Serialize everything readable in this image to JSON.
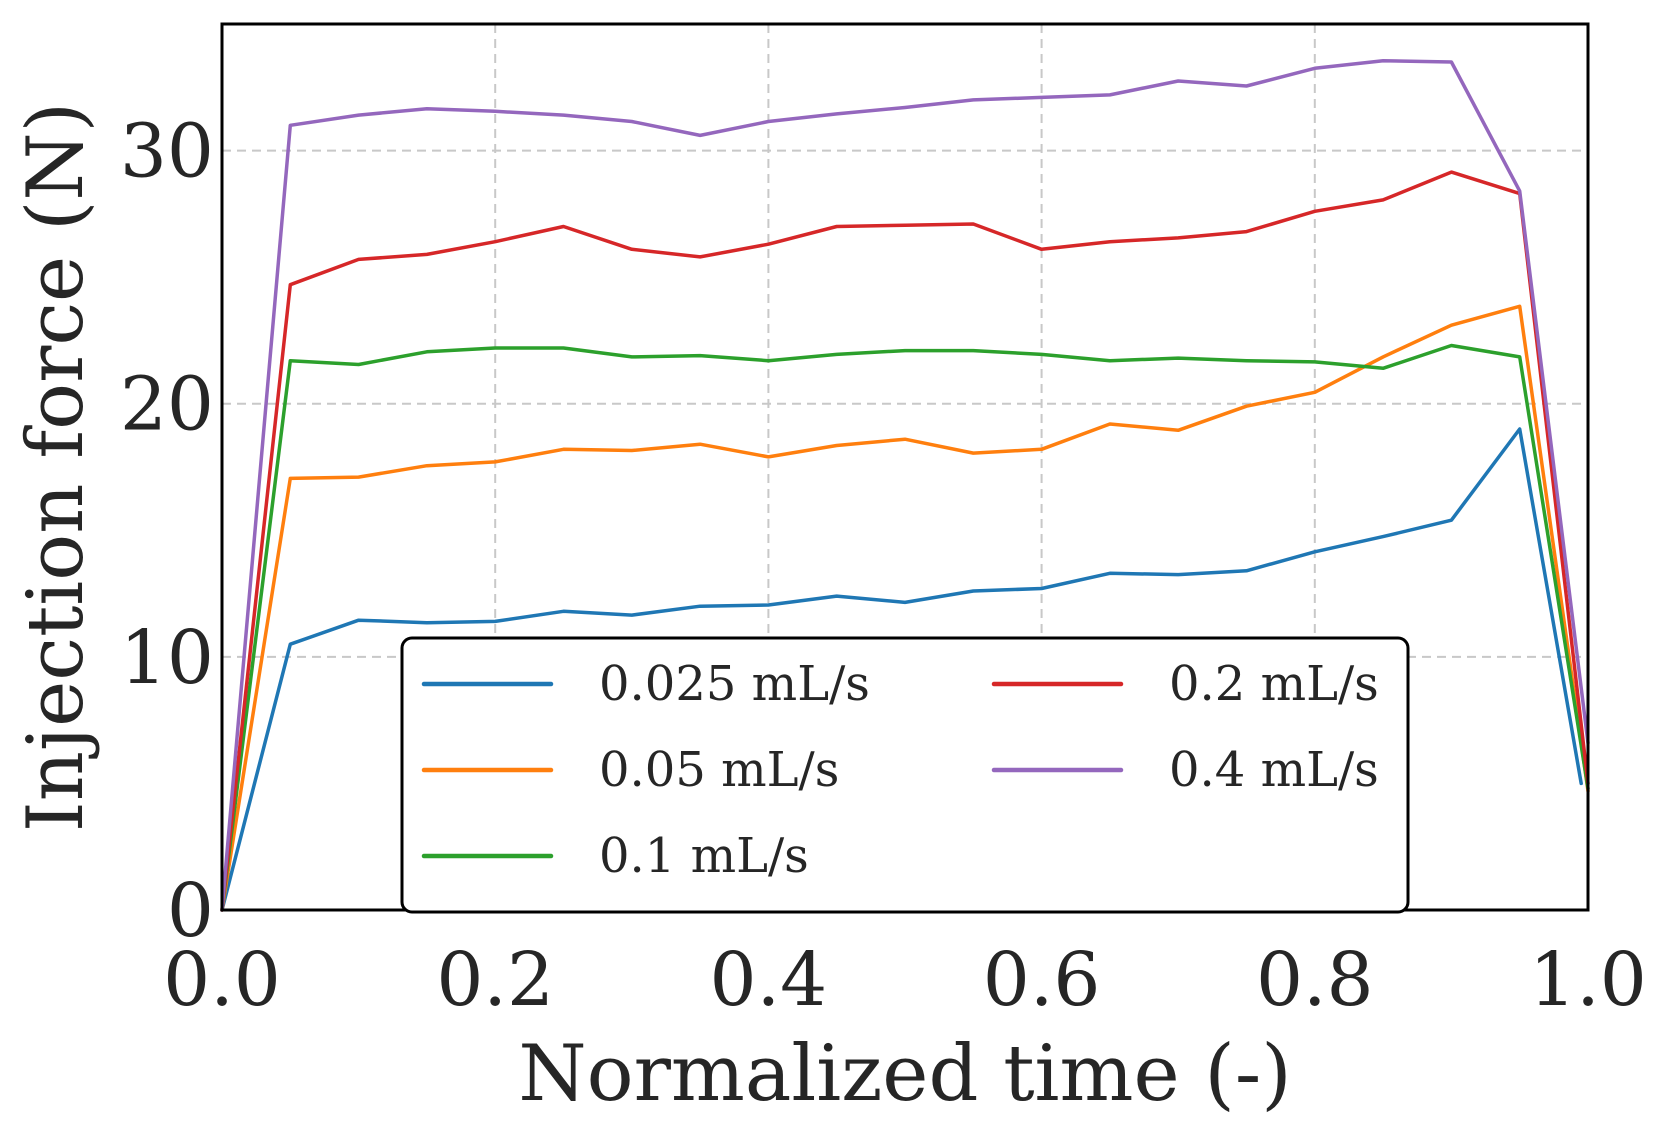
{
  "chart_data": {
    "type": "line",
    "title": "",
    "xlabel": "Normalized time (-)",
    "ylabel": "Injection force (N)",
    "xlim": [
      0,
      1
    ],
    "ylim": [
      0,
      35
    ],
    "xticks": [
      0.0,
      0.2,
      0.4,
      0.6,
      0.8,
      1.0
    ],
    "xtick_labels": [
      "0.0",
      "0.2",
      "0.4",
      "0.6",
      "0.8",
      "1.0"
    ],
    "yticks": [
      0,
      10,
      20,
      30
    ],
    "ytick_labels": [
      "0",
      "10",
      "20",
      "30"
    ],
    "grid": true,
    "legend_position": "lower-center",
    "x": [
      0.0,
      0.05,
      0.1,
      0.15,
      0.2,
      0.25,
      0.3,
      0.35,
      0.4,
      0.45,
      0.5,
      0.55,
      0.6,
      0.65,
      0.7,
      0.75,
      0.8,
      0.85,
      0.9,
      0.95,
      1.0
    ],
    "series": [
      {
        "name": "0.025 mL/s",
        "color": "#1f77b4",
        "x": [
          0.0,
          0.05,
          0.1,
          0.15,
          0.2,
          0.25,
          0.3,
          0.35,
          0.4,
          0.45,
          0.5,
          0.55,
          0.6,
          0.65,
          0.7,
          0.75,
          0.8,
          0.85,
          0.9,
          0.95,
          0.995
        ],
        "values": [
          0.0,
          10.5,
          11.45,
          11.35,
          11.4,
          11.8,
          11.65,
          12.0,
          12.05,
          12.4,
          12.15,
          12.6,
          12.7,
          13.3,
          13.25,
          13.4,
          14.15,
          14.75,
          15.4,
          19.0,
          5.0
        ]
      },
      {
        "name": "0.05 mL/s",
        "color": "#ff7f0e",
        "values": [
          0.0,
          17.05,
          17.1,
          17.55,
          17.7,
          18.2,
          18.15,
          18.4,
          17.9,
          18.35,
          18.6,
          18.05,
          18.2,
          19.2,
          18.95,
          19.9,
          20.45,
          21.85,
          23.1,
          23.85,
          4.7
        ]
      },
      {
        "name": "0.1 mL/s",
        "color": "#2ca02c",
        "values": [
          0.0,
          21.7,
          21.55,
          22.05,
          22.2,
          22.2,
          21.85,
          21.9,
          21.7,
          21.95,
          22.1,
          22.1,
          21.95,
          21.7,
          21.8,
          21.7,
          21.65,
          21.4,
          22.3,
          21.85,
          4.8
        ]
      },
      {
        "name": "0.2 mL/s",
        "color": "#d62728",
        "values": [
          0.0,
          24.7,
          25.7,
          25.9,
          26.4,
          27.0,
          26.1,
          25.8,
          26.3,
          27.0,
          27.05,
          27.1,
          26.1,
          26.4,
          26.55,
          26.8,
          27.6,
          28.05,
          29.15,
          28.3,
          5.0
        ]
      },
      {
        "name": "0.4 mL/s",
        "color": "#9467bd",
        "values": [
          0.0,
          31.0,
          31.4,
          31.65,
          31.55,
          31.4,
          31.15,
          30.6,
          31.15,
          31.45,
          31.7,
          32.0,
          32.1,
          32.2,
          32.75,
          32.55,
          33.25,
          33.55,
          33.5,
          28.4,
          6.6
        ]
      }
    ]
  }
}
